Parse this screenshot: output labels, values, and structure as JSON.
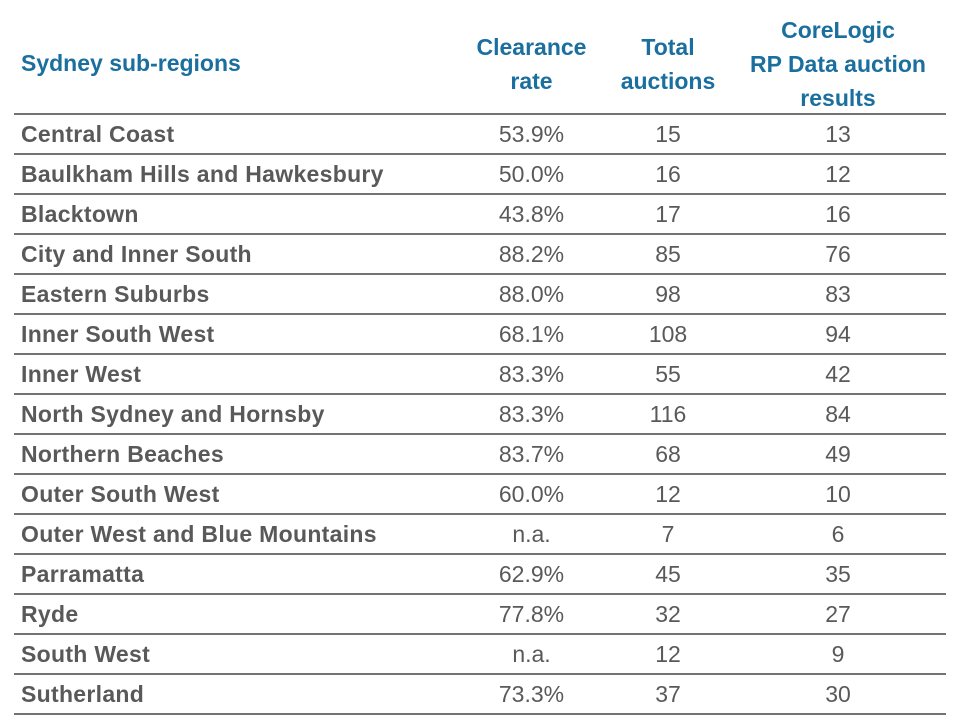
{
  "header": {
    "region": "Sydney sub-regions",
    "clearance_line1": "Clearance",
    "clearance_line2": "rate",
    "total_line1": "Total",
    "total_line2": "auctions",
    "core_line1": "CoreLogic",
    "core_line2": "RP Data auction",
    "core_line3": "results"
  },
  "rows": [
    {
      "name": "Central Coast",
      "clearance": "53.9%",
      "total": "15",
      "results": "13"
    },
    {
      "name": "Baulkham Hills and Hawkesbury",
      "clearance": "50.0%",
      "total": "16",
      "results": "12"
    },
    {
      "name": "Blacktown",
      "clearance": "43.8%",
      "total": "17",
      "results": "16"
    },
    {
      "name": "City and Inner South",
      "clearance": "88.2%",
      "total": "85",
      "results": "76"
    },
    {
      "name": "Eastern Suburbs",
      "clearance": "88.0%",
      "total": "98",
      "results": "83"
    },
    {
      "name": "Inner South West",
      "clearance": "68.1%",
      "total": "108",
      "results": "94"
    },
    {
      "name": "Inner West",
      "clearance": "83.3%",
      "total": "55",
      "results": "42"
    },
    {
      "name": "North Sydney and Hornsby",
      "clearance": "83.3%",
      "total": "116",
      "results": "84"
    },
    {
      "name": "Northern Beaches",
      "clearance": "83.7%",
      "total": "68",
      "results": "49"
    },
    {
      "name": "Outer South West",
      "clearance": "60.0%",
      "total": "12",
      "results": "10"
    },
    {
      "name": "Outer West and Blue Mountains",
      "clearance": "n.a.",
      "total": "7",
      "results": "6"
    },
    {
      "name": "Parramatta",
      "clearance": "62.9%",
      "total": "45",
      "results": "35"
    },
    {
      "name": "Ryde",
      "clearance": "77.8%",
      "total": "32",
      "results": "27"
    },
    {
      "name": "South West",
      "clearance": "n.a.",
      "total": "12",
      "results": "9"
    },
    {
      "name": "Sutherland",
      "clearance": "73.3%",
      "total": "37",
      "results": "30"
    }
  ],
  "colors": {
    "header_text": "#1a6f9f",
    "body_text": "#595959",
    "rule": "#737373"
  }
}
